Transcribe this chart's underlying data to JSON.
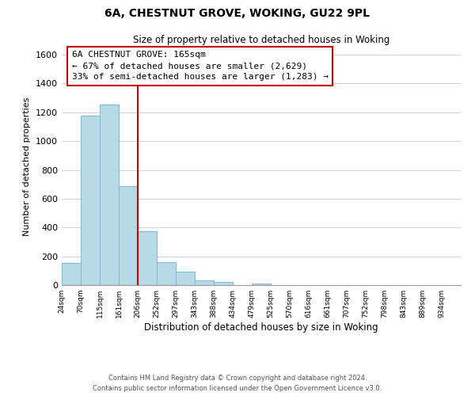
{
  "title": "6A, CHESTNUT GROVE, WOKING, GU22 9PL",
  "subtitle": "Size of property relative to detached houses in Woking",
  "xlabel": "Distribution of detached houses by size in Woking",
  "ylabel": "Number of detached properties",
  "bar_color": "#b8d9e8",
  "bar_edge_color": "#7bb8d4",
  "categories": [
    "24sqm",
    "70sqm",
    "115sqm",
    "161sqm",
    "206sqm",
    "252sqm",
    "297sqm",
    "343sqm",
    "388sqm",
    "434sqm",
    "479sqm",
    "525sqm",
    "570sqm",
    "616sqm",
    "661sqm",
    "707sqm",
    "752sqm",
    "798sqm",
    "843sqm",
    "889sqm",
    "934sqm"
  ],
  "values": [
    155,
    1175,
    1255,
    690,
    375,
    160,
    93,
    35,
    22,
    0,
    10,
    0,
    0,
    0,
    0,
    0,
    0,
    0,
    0,
    0,
    0
  ],
  "ylim": [
    0,
    1650
  ],
  "yticks": [
    0,
    200,
    400,
    600,
    800,
    1000,
    1200,
    1400,
    1600
  ],
  "annotation_title": "6A CHESTNUT GROVE: 165sqm",
  "annotation_line1": "← 67% of detached houses are smaller (2,629)",
  "annotation_line2": "33% of semi-detached houses are larger (1,283) →",
  "annotation_box_color": "#ffffff",
  "annotation_box_edge": "#cc0000",
  "property_bar_index": 3,
  "footnote1": "Contains HM Land Registry data © Crown copyright and database right 2024.",
  "footnote2": "Contains public sector information licensed under the Open Government Licence v3.0.",
  "background_color": "#ffffff",
  "grid_color": "#cccccc"
}
